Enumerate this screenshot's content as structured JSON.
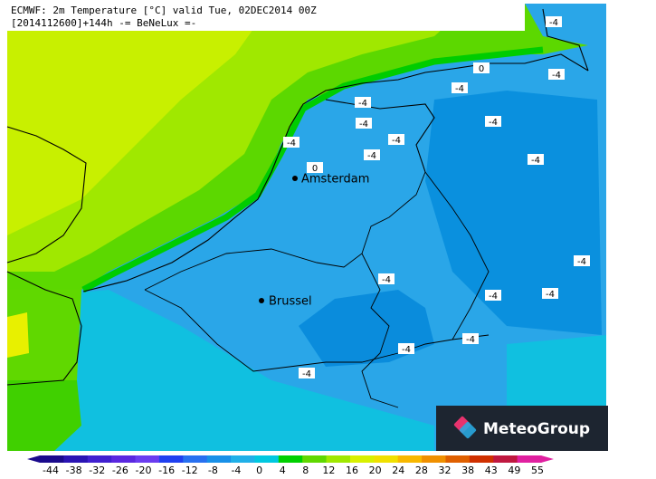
{
  "header": {
    "line1": "ECMWF: 2m Temperature [°C] valid Tue, 02DEC2014 00Z",
    "line2": "[2014112600]+144h -= BeNeLux =-"
  },
  "cities": [
    "Amsterdam",
    "Brussel"
  ],
  "contour_labels": [
    -4,
    0,
    -4,
    -4,
    -4,
    -4,
    -4,
    -4,
    -4,
    -4,
    -4,
    0,
    -4,
    -4,
    -4,
    -4,
    -4,
    -4,
    -4
  ],
  "logo": "MeteoGroup",
  "legend": {
    "ticks": [
      -44,
      -38,
      -32,
      -26,
      -20,
      -16,
      -12,
      -8,
      -4,
      0,
      4,
      8,
      12,
      16,
      20,
      24,
      28,
      32,
      38,
      43,
      49,
      55
    ],
    "colors": [
      "#1a0a8c",
      "#2a14b4",
      "#4020d0",
      "#5a28e0",
      "#6a3cf0",
      "#2040f0",
      "#2870f0",
      "#1890e8",
      "#20b0e8",
      "#00c8e0",
      "#00d000",
      "#60d800",
      "#a0e800",
      "#d8f000",
      "#f0e000",
      "#f8b800",
      "#f09000",
      "#e06000",
      "#d03000",
      "#c01840",
      "#e020a0"
    ]
  }
}
